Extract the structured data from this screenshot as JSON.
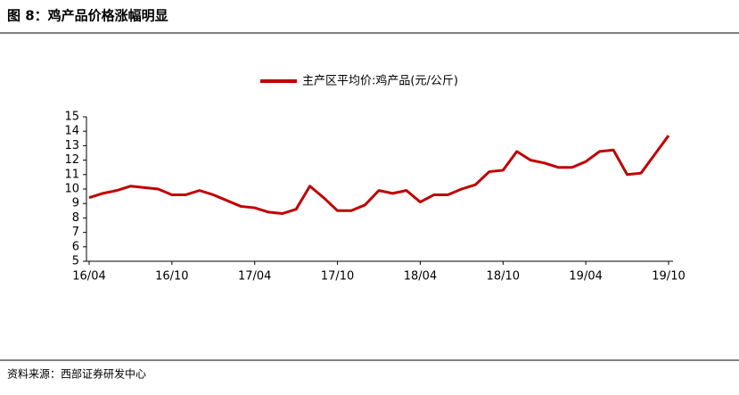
{
  "header": {
    "title": "图 8：鸡产品价格涨幅明显"
  },
  "chart_data": {
    "type": "line",
    "x": [
      "2016-04",
      "2016-05",
      "2016-06",
      "2016-07",
      "2016-08",
      "2016-09",
      "2016-10",
      "2016-11",
      "2016-12",
      "2017-01",
      "2017-02",
      "2017-03",
      "2017-04",
      "2017-05",
      "2017-06",
      "2017-07",
      "2017-08",
      "2017-09",
      "2017-10",
      "2017-11",
      "2017-12",
      "2018-01",
      "2018-02",
      "2018-03",
      "2018-04",
      "2018-05",
      "2018-06",
      "2018-07",
      "2018-08",
      "2018-09",
      "2018-10",
      "2018-11",
      "2018-12",
      "2019-01",
      "2019-02",
      "2019-03",
      "2019-04",
      "2019-05",
      "2019-06",
      "2019-07",
      "2019-08",
      "2019-09",
      "2019-10"
    ],
    "series": [
      {
        "name": "主产区平均价:鸡产品(元/公斤)",
        "color": "#c00000",
        "values": [
          9.4,
          9.7,
          9.9,
          10.2,
          10.1,
          10.0,
          9.6,
          9.6,
          9.9,
          9.6,
          9.2,
          8.8,
          8.7,
          8.4,
          8.3,
          8.6,
          10.2,
          9.4,
          8.5,
          8.5,
          8.9,
          9.9,
          9.7,
          9.9,
          9.1,
          9.6,
          9.6,
          10.0,
          10.3,
          11.2,
          11.3,
          12.6,
          12.0,
          11.8,
          11.5,
          11.5,
          11.9,
          12.6,
          12.7,
          11.0,
          11.1,
          12.4,
          13.7
        ]
      }
    ],
    "ylim": [
      5,
      15
    ],
    "yticks": [
      5,
      6,
      7,
      8,
      9,
      10,
      11,
      12,
      13,
      14,
      15
    ],
    "xticks": [
      {
        "value": "2016-04",
        "label": "16/04"
      },
      {
        "value": "2016-10",
        "label": "16/10"
      },
      {
        "value": "2017-04",
        "label": "17/04"
      },
      {
        "value": "2017-10",
        "label": "17/10"
      },
      {
        "value": "2018-04",
        "label": "18/04"
      },
      {
        "value": "2018-10",
        "label": "18/10"
      },
      {
        "value": "2019-04",
        "label": "19/04"
      },
      {
        "value": "2019-10",
        "label": "19/10"
      }
    ],
    "legend": "top"
  },
  "footer": {
    "source": "资料来源：西部证券研发中心"
  }
}
